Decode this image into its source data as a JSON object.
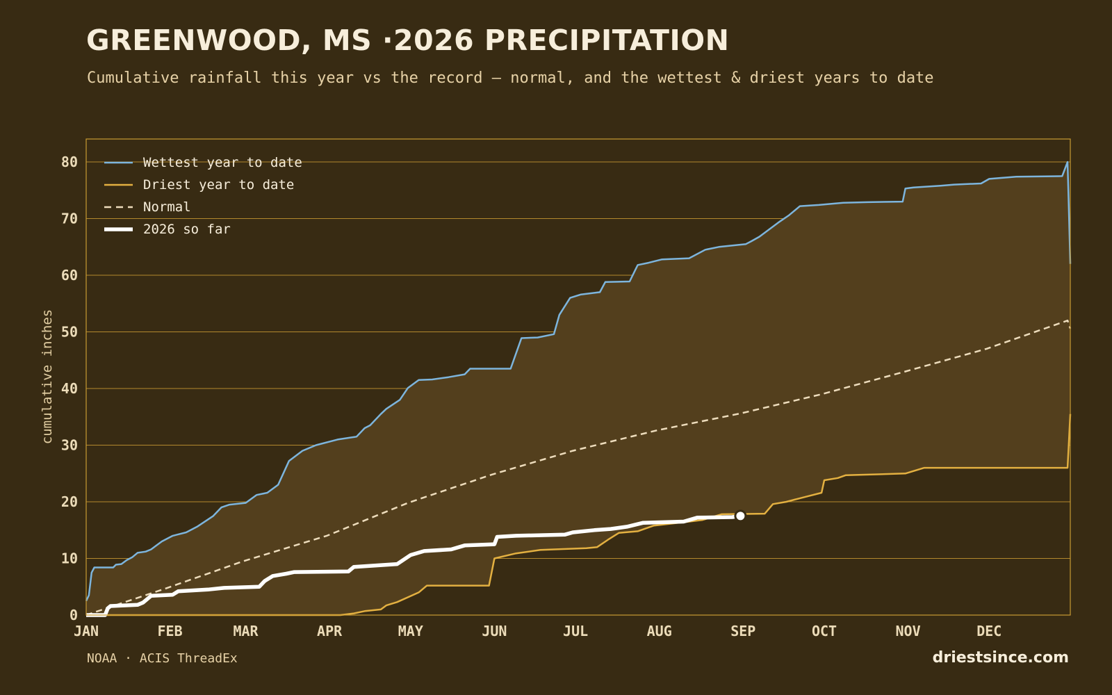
{
  "header": {
    "title": "GREENWOOD, MS ·2026 PRECIPITATION",
    "subtitle": "Cumulative rainfall this year vs the record — normal, and the wettest & driest years to date"
  },
  "footer": {
    "source": "NOAA · ACIS ThreadEx",
    "brand": "driestsince.com"
  },
  "colors": {
    "background": "#382b13",
    "band_fill": "#533f1d",
    "grid": "#c99a33",
    "wettest": "#7db5dd",
    "driest": "#e3b041",
    "normal": "#eddcbc",
    "current": "#ffffff"
  },
  "chart_data": {
    "type": "line",
    "title": "GREENWOOD, MS ·2026 PRECIPITATION",
    "ylabel": "cumulative inches",
    "xlabel": "",
    "x_unit": "day of year",
    "xlim": [
      1,
      365
    ],
    "ylim": [
      0,
      80
    ],
    "yticks": [
      0,
      10,
      20,
      30,
      40,
      50,
      60,
      70,
      80
    ],
    "xticks": [
      {
        "label": "JAN",
        "day": 1
      },
      {
        "label": "FEB",
        "day": 32
      },
      {
        "label": "MAR",
        "day": 60
      },
      {
        "label": "APR",
        "day": 91
      },
      {
        "label": "MAY",
        "day": 121
      },
      {
        "label": "JUN",
        "day": 152
      },
      {
        "label": "JUL",
        "day": 182
      },
      {
        "label": "AUG",
        "day": 213
      },
      {
        "label": "SEP",
        "day": 244
      },
      {
        "label": "OCT",
        "day": 274
      },
      {
        "label": "NOV",
        "day": 305
      },
      {
        "label": "DEC",
        "day": 335
      }
    ],
    "grid": true,
    "legend_position": "top-left",
    "series": [
      {
        "name": "Wettest year to date",
        "key": "wettest",
        "points": [
          [
            1,
            2.5
          ],
          [
            2,
            3.5
          ],
          [
            3,
            7.5
          ],
          [
            4,
            8.4
          ],
          [
            11,
            8.4
          ],
          [
            12,
            8.9
          ],
          [
            14,
            9.0
          ],
          [
            16,
            9.7
          ],
          [
            18,
            10.2
          ],
          [
            20,
            11.0
          ],
          [
            23,
            11.2
          ],
          [
            25,
            11.6
          ],
          [
            27,
            12.3
          ],
          [
            29,
            13.0
          ],
          [
            33,
            14.0
          ],
          [
            38,
            14.6
          ],
          [
            42,
            15.6
          ],
          [
            48,
            17.5
          ],
          [
            51,
            19.0
          ],
          [
            54,
            19.5
          ],
          [
            60,
            19.8
          ],
          [
            64,
            21.2
          ],
          [
            68,
            21.6
          ],
          [
            72,
            23.0
          ],
          [
            76,
            27.2
          ],
          [
            81,
            29.0
          ],
          [
            86,
            30.0
          ],
          [
            94,
            31.0
          ],
          [
            101,
            31.5
          ],
          [
            104,
            33.0
          ],
          [
            106,
            33.5
          ],
          [
            110,
            35.5
          ],
          [
            112,
            36.4
          ],
          [
            117,
            38.0
          ],
          [
            120,
            40.1
          ],
          [
            124,
            41.5
          ],
          [
            129,
            41.6
          ],
          [
            135,
            42.0
          ],
          [
            141,
            42.5
          ],
          [
            143,
            43.5
          ],
          [
            158,
            43.5
          ],
          [
            162,
            48.9
          ],
          [
            168,
            49.0
          ],
          [
            174,
            49.6
          ],
          [
            176,
            53.0
          ],
          [
            180,
            56.0
          ],
          [
            184,
            56.6
          ],
          [
            191,
            57.0
          ],
          [
            193,
            58.8
          ],
          [
            202,
            58.9
          ],
          [
            205,
            61.8
          ],
          [
            209,
            62.2
          ],
          [
            214,
            62.8
          ],
          [
            224,
            63.0
          ],
          [
            230,
            64.5
          ],
          [
            235,
            65.0
          ],
          [
            245,
            65.5
          ],
          [
            247,
            66.0
          ],
          [
            250,
            66.8
          ],
          [
            257,
            69.3
          ],
          [
            261,
            70.6
          ],
          [
            265,
            72.2
          ],
          [
            272,
            72.4
          ],
          [
            281,
            72.8
          ],
          [
            290,
            72.9
          ],
          [
            303,
            73.0
          ],
          [
            304,
            75.3
          ],
          [
            307,
            75.5
          ],
          [
            317,
            75.8
          ],
          [
            322,
            76.0
          ],
          [
            332,
            76.2
          ],
          [
            335,
            77.0
          ],
          [
            345,
            77.4
          ],
          [
            362,
            77.5
          ],
          [
            364,
            80.0
          ],
          [
            365,
            62.0
          ]
        ]
      },
      {
        "name": "Driest year to date",
        "key": "driest",
        "points": [
          [
            1,
            0.0
          ],
          [
            95,
            0.0
          ],
          [
            100,
            0.3
          ],
          [
            104,
            0.7
          ],
          [
            110,
            1.0
          ],
          [
            112,
            1.7
          ],
          [
            116,
            2.3
          ],
          [
            124,
            4.0
          ],
          [
            127,
            5.2
          ],
          [
            150,
            5.2
          ],
          [
            152,
            10.0
          ],
          [
            160,
            10.9
          ],
          [
            169,
            11.5
          ],
          [
            186,
            11.8
          ],
          [
            190,
            12.0
          ],
          [
            194,
            13.3
          ],
          [
            198,
            14.5
          ],
          [
            205,
            14.8
          ],
          [
            211,
            15.8
          ],
          [
            224,
            16.5
          ],
          [
            229,
            16.8
          ],
          [
            236,
            17.8
          ],
          [
            252,
            17.9
          ],
          [
            255,
            19.6
          ],
          [
            260,
            20.0
          ],
          [
            264,
            20.5
          ],
          [
            268,
            21.0
          ],
          [
            273,
            21.6
          ],
          [
            274,
            23.8
          ],
          [
            279,
            24.2
          ],
          [
            282,
            24.7
          ],
          [
            304,
            25.0
          ],
          [
            311,
            26.0
          ],
          [
            364,
            26.0
          ],
          [
            365,
            35.5
          ]
        ]
      },
      {
        "name": "Normal",
        "key": "normal",
        "points": [
          [
            1,
            0.0
          ],
          [
            31,
            4.8
          ],
          [
            59,
            9.5
          ],
          [
            90,
            14.0
          ],
          [
            120,
            19.8
          ],
          [
            151,
            24.8
          ],
          [
            181,
            29.0
          ],
          [
            212,
            32.6
          ],
          [
            243,
            35.6
          ],
          [
            273,
            39.0
          ],
          [
            304,
            43.0
          ],
          [
            334,
            47.0
          ],
          [
            364,
            52.0
          ],
          [
            365,
            50.6
          ]
        ]
      },
      {
        "name": "2026 so far",
        "key": "current",
        "points": [
          [
            1,
            0.0
          ],
          [
            8,
            0.0
          ],
          [
            9,
            1.2
          ],
          [
            10,
            1.6
          ],
          [
            20,
            1.8
          ],
          [
            22,
            2.2
          ],
          [
            25,
            3.4
          ],
          [
            33,
            3.6
          ],
          [
            35,
            4.2
          ],
          [
            46,
            4.5
          ],
          [
            52,
            4.8
          ],
          [
            65,
            5.0
          ],
          [
            67,
            6.0
          ],
          [
            70,
            6.9
          ],
          [
            75,
            7.3
          ],
          [
            78,
            7.6
          ],
          [
            98,
            7.7
          ],
          [
            100,
            8.5
          ],
          [
            116,
            9.0
          ],
          [
            121,
            10.6
          ],
          [
            126,
            11.3
          ],
          [
            136,
            11.6
          ],
          [
            141,
            12.3
          ],
          [
            152,
            12.5
          ],
          [
            153,
            13.8
          ],
          [
            160,
            14.0
          ],
          [
            178,
            14.2
          ],
          [
            181,
            14.6
          ],
          [
            189,
            15.0
          ],
          [
            195,
            15.2
          ],
          [
            201,
            15.6
          ],
          [
            207,
            16.3
          ],
          [
            222,
            16.5
          ],
          [
            227,
            17.2
          ],
          [
            240,
            17.3
          ],
          [
            243,
            17.5
          ]
        ]
      }
    ],
    "band": {
      "upper": "wettest",
      "lower": "driest"
    },
    "current_marker": {
      "day": 243,
      "value": 17.5
    }
  }
}
